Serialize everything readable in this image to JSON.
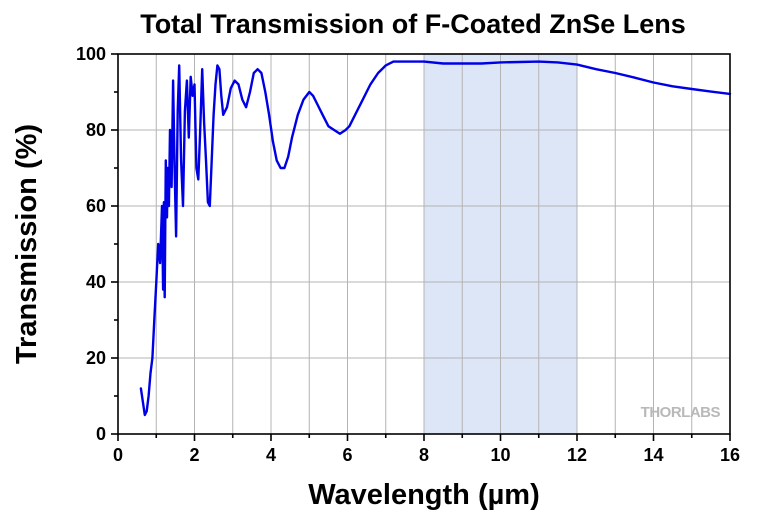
{
  "chart_data": {
    "type": "line",
    "title": "Total Transmission of F-Coated ZnSe Lens",
    "xlabel": "Wavelength (µm)",
    "ylabel": "Transmission (%)",
    "xlim": [
      0,
      16
    ],
    "ylim": [
      0,
      100
    ],
    "xticks": [
      0,
      2,
      4,
      6,
      8,
      10,
      12,
      14,
      16
    ],
    "yticks": [
      0,
      20,
      40,
      60,
      80,
      100
    ],
    "grid": true,
    "highlight_band": {
      "x_start": 8,
      "x_end": 12,
      "color": "#dce6f6"
    },
    "series": [
      {
        "color": "#0000e6",
        "x": [
          0.6,
          0.7,
          0.75,
          0.8,
          0.85,
          0.9,
          0.95,
          1.0,
          1.05,
          1.1,
          1.15,
          1.18,
          1.2,
          1.22,
          1.25,
          1.28,
          1.3,
          1.33,
          1.36,
          1.4,
          1.44,
          1.48,
          1.52,
          1.56,
          1.6,
          1.65,
          1.7,
          1.75,
          1.8,
          1.85,
          1.9,
          1.95,
          2.0,
          2.05,
          2.1,
          2.15,
          2.2,
          2.25,
          2.3,
          2.35,
          2.4,
          2.45,
          2.5,
          2.55,
          2.6,
          2.65,
          2.7,
          2.75,
          2.85,
          2.95,
          3.05,
          3.15,
          3.25,
          3.35,
          3.45,
          3.55,
          3.65,
          3.75,
          3.85,
          3.95,
          4.05,
          4.15,
          4.25,
          4.35,
          4.45,
          4.55,
          4.7,
          4.85,
          5.0,
          5.1,
          5.2,
          5.35,
          5.5,
          5.65,
          5.8,
          5.95,
          6.05,
          6.2,
          6.4,
          6.6,
          6.8,
          7.0,
          7.2,
          7.4,
          7.6,
          7.8,
          8.0,
          8.5,
          9.0,
          9.5,
          10.0,
          10.5,
          11.0,
          11.5,
          12.0,
          12.5,
          13.0,
          13.5,
          14.0,
          14.5,
          15.0,
          15.5,
          16.0
        ],
        "y": [
          12,
          5,
          6,
          10,
          16,
          20,
          30,
          40,
          50,
          45,
          60,
          38,
          61,
          36,
          72,
          57,
          70,
          60,
          80,
          65,
          93,
          70,
          52,
          85,
          97,
          72,
          60,
          85,
          93,
          78,
          94,
          89,
          92,
          70,
          67,
          80,
          96,
          82,
          72,
          61,
          60,
          72,
          84,
          92,
          97,
          96,
          89,
          84,
          86,
          91,
          93,
          92,
          88,
          86,
          90,
          95,
          96,
          95,
          90,
          84,
          77,
          72,
          70,
          70,
          73,
          78,
          84,
          88,
          90,
          89,
          87,
          84,
          81,
          80,
          79,
          80,
          81,
          84,
          88,
          92,
          95,
          97,
          98,
          98,
          98,
          98,
          98,
          97.5,
          97.5,
          97.5,
          97.8,
          97.9,
          98,
          97.8,
          97.2,
          96,
          95,
          93.8,
          92.5,
          91.5,
          90.8,
          90.1,
          89.5
        ]
      }
    ]
  },
  "logo": {
    "text": "THORLABS"
  }
}
